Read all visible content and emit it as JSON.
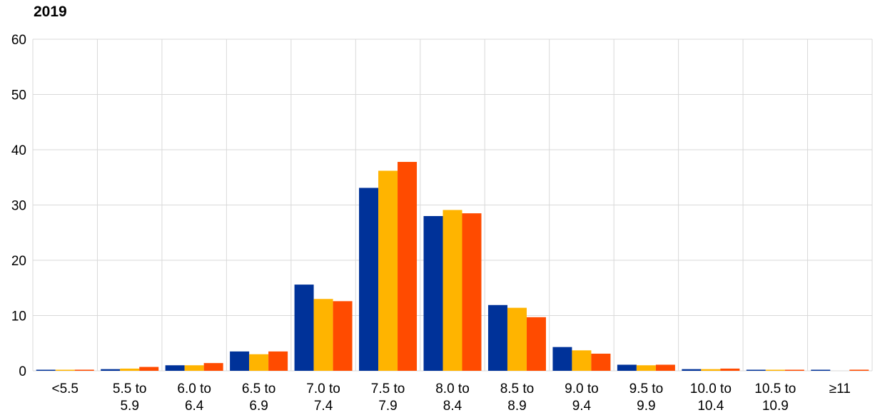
{
  "chart_data": {
    "type": "bar",
    "title": "2019",
    "xlabel": "",
    "ylabel": "",
    "ylim": [
      0,
      60
    ],
    "yticks": [
      "0",
      "10",
      "20",
      "30",
      "40",
      "50",
      "60"
    ],
    "grid": true,
    "categories": [
      [
        "<5.5"
      ],
      [
        "5.5 to",
        "5.9"
      ],
      [
        "6.0 to",
        "6.4"
      ],
      [
        "6.5 to",
        "6.9"
      ],
      [
        "7.0 to",
        "7.4"
      ],
      [
        "7.5 to",
        "7.9"
      ],
      [
        "8.0 to",
        "8.4"
      ],
      [
        "8.5 to",
        "8.9"
      ],
      [
        "9.0 to",
        "9.4"
      ],
      [
        "9.5 to",
        "9.9"
      ],
      [
        "10.0 to",
        "10.4"
      ],
      [
        "10.5 to",
        "10.9"
      ],
      [
        "≥11"
      ]
    ],
    "series": [
      {
        "color": "#003299",
        "values": [
          0.1,
          0.3,
          1.0,
          3.5,
          15.6,
          33.1,
          28.0,
          11.9,
          4.3,
          1.1,
          0.3,
          0.1,
          0.1
        ]
      },
      {
        "color": "#FFB400",
        "values": [
          0.1,
          0.4,
          1.0,
          3.0,
          13.0,
          36.2,
          29.1,
          11.4,
          3.7,
          1.0,
          0.3,
          0.1,
          0.0
        ]
      },
      {
        "color": "#FF4B00",
        "values": [
          0.2,
          0.7,
          1.4,
          3.5,
          12.6,
          37.8,
          28.5,
          9.7,
          3.1,
          1.1,
          0.4,
          0.1,
          0.2
        ]
      }
    ]
  }
}
